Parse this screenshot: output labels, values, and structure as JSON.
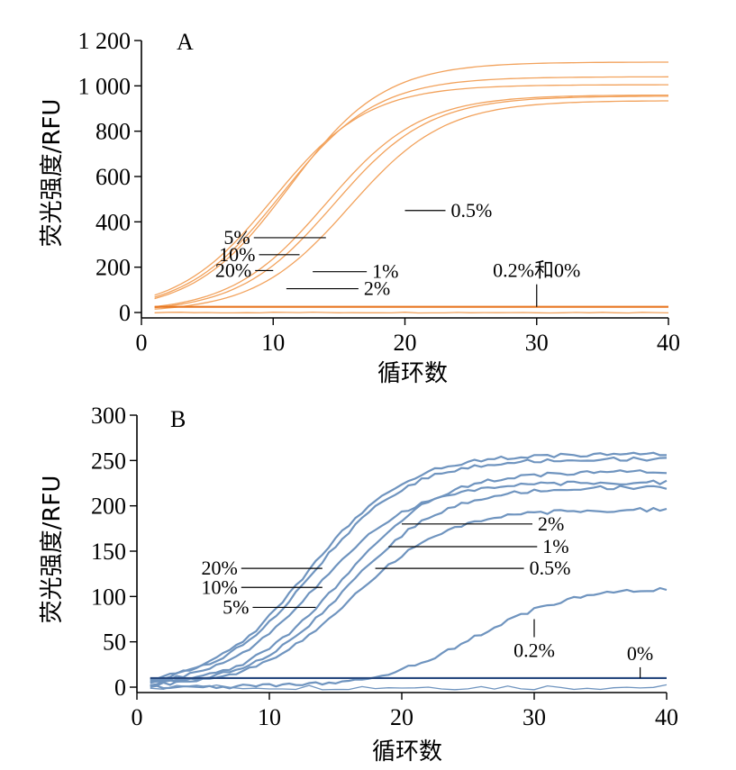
{
  "chart_data": [
    {
      "panel": "A",
      "type": "line",
      "color": "#f2a25c",
      "baseline_color": "#e87722",
      "xlabel": "循环数",
      "ylabel": "荧光强度/RFU",
      "xlim": [
        0,
        40
      ],
      "ylim": [
        0,
        1200
      ],
      "xticks": [
        0,
        10,
        20,
        30,
        40
      ],
      "yticks": [
        0,
        200,
        400,
        600,
        800,
        1000,
        1200
      ],
      "ytick_labels": [
        "0",
        "200",
        "400",
        "600",
        "800",
        "1 000",
        "1 200"
      ],
      "series": [
        {
          "name": "20%",
          "ct": 10.0,
          "plateau": 1005
        },
        {
          "name": "10%",
          "ct": 10.6,
          "plateau": 1040
        },
        {
          "name": "5%",
          "ct": 11.2,
          "plateau": 1105
        },
        {
          "name": "1%",
          "ct": 14.0,
          "plateau": 960
        },
        {
          "name": "2%",
          "ct": 14.6,
          "plateau": 955
        },
        {
          "name": "0.5%",
          "ct": 15.8,
          "plateau": 935
        },
        {
          "name": "0.2%和0%",
          "baseline": 25
        }
      ],
      "annotations": [
        {
          "text": "5%",
          "point": [
            14,
            330
          ]
        },
        {
          "text": "10%",
          "point": [
            12,
            255
          ]
        },
        {
          "text": "20%",
          "point": [
            10,
            185
          ]
        },
        {
          "text": "1%",
          "point": [
            13,
            180
          ]
        },
        {
          "text": "2%",
          "point": [
            11,
            105
          ]
        },
        {
          "text": "0.5%",
          "point": [
            20,
            450
          ]
        },
        {
          "text": "0.2%和0%",
          "point": [
            30,
            25
          ]
        }
      ]
    },
    {
      "panel": "B",
      "type": "line",
      "color": "#6f94bf",
      "baseline_color": "#27497f",
      "xlabel": "循环数",
      "ylabel": "荧光强度/RFU",
      "xlim": [
        0,
        40
      ],
      "ylim": [
        0,
        300
      ],
      "xticks": [
        0,
        10,
        20,
        30,
        40
      ],
      "yticks": [
        0,
        50,
        100,
        150,
        200,
        250,
        300
      ],
      "ytick_labels": [
        "0",
        "50",
        "100",
        "150",
        "200",
        "250",
        "300"
      ],
      "series": [
        {
          "name": "20%",
          "ct": 13.0,
          "plateau": 257
        },
        {
          "name": "10%",
          "ct": 13.3,
          "plateau": 252
        },
        {
          "name": "5%",
          "ct": 13.7,
          "plateau": 226
        },
        {
          "name": "2%",
          "ct": 15.5,
          "plateau": 238
        },
        {
          "name": "1%",
          "ct": 15.9,
          "plateau": 221
        },
        {
          "name": "0.5%",
          "ct": 16.2,
          "plateau": 196
        },
        {
          "name": "0.2%",
          "ct": 25.5,
          "plateau": 110
        },
        {
          "name": "0%",
          "baseline": 10
        }
      ],
      "annotations": [
        {
          "text": "20%",
          "point": [
            14,
            131
          ]
        },
        {
          "text": "10%",
          "point": [
            14,
            110
          ]
        },
        {
          "text": "5%",
          "point": [
            13.5,
            88
          ]
        },
        {
          "text": "2%",
          "point": [
            20,
            180
          ]
        },
        {
          "text": "1%",
          "point": [
            19,
            155
          ]
        },
        {
          "text": "0.5%",
          "point": [
            18,
            131
          ]
        },
        {
          "text": "0.2%",
          "point": [
            30,
            75
          ]
        },
        {
          "text": "0%",
          "point": [
            38,
            10
          ]
        }
      ]
    }
  ]
}
